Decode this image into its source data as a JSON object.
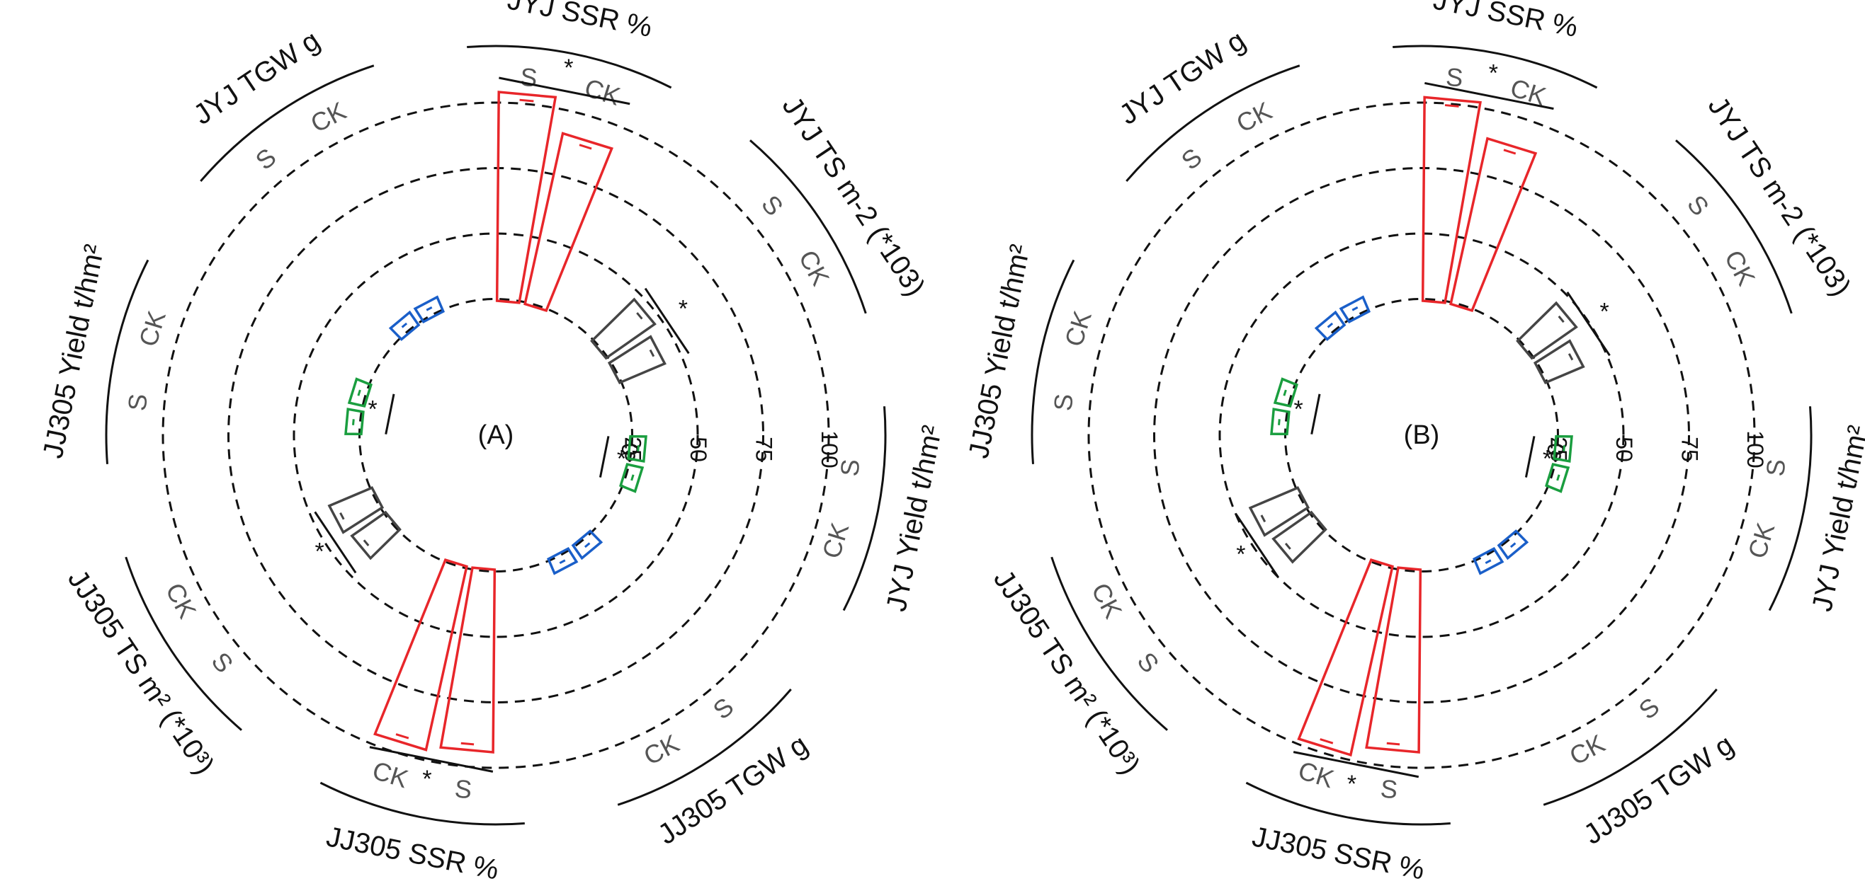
{
  "chart_data": [
    {
      "type": "radial-bar",
      "panel_label": "(A)",
      "radial_axis": {
        "range": [
          0,
          100
        ],
        "ticks": [
          "0",
          "25",
          "50",
          "75",
          "100"
        ]
      },
      "grid": "dashed circles at 25, 50, 75, 100",
      "groups": [
        {
          "label": "JYJ SSR %",
          "color": "#e8262a",
          "sig": "*",
          "bars": [
            {
              "label": "S",
              "value": 100
            },
            {
              "label": "CK",
              "value": 87
            }
          ]
        },
        {
          "label": "JYJ TS m<sup>-2</sup> (*10<sup>3</sup>)",
          "label_text": "JYJ TS m-2 (*103)",
          "color": "#454545",
          "sig": "*",
          "bars": [
            {
              "label": "S",
              "value": 47
            },
            {
              "label": "CK",
              "value": 43
            }
          ]
        },
        {
          "label": "JYJ Yield t/hm²",
          "color": "#1a9e3f",
          "sig": "*",
          "bars": [
            {
              "label": "S",
              "value": 10
            },
            {
              "label": "CK",
              "value": 7
            }
          ]
        },
        {
          "label": "JJ305 TGW g",
          "color": "#1a5fc9",
          "sig": "",
          "bars": [
            {
              "label": "S",
              "value": 25
            },
            {
              "label": "CK",
              "value": 24
            }
          ]
        },
        {
          "label": "JJ305 SSR %",
          "color": "#e8262a",
          "sig": "*",
          "bars": [
            {
              "label": "S",
              "value": 90
            },
            {
              "label": "CK",
              "value": 92
            }
          ]
        },
        {
          "label": "JJ305 TS m² (*10³)",
          "color": "#454545",
          "sig": "*",
          "bars": [
            {
              "label": "S",
              "value": 40
            },
            {
              "label": "CK",
              "value": 42
            }
          ]
        },
        {
          "label": "JJ305 Yield t/hm²",
          "color": "#1a9e3f",
          "sig": "*",
          "bars": [
            {
              "label": "S",
              "value": 8
            },
            {
              "label": "CK",
              "value": 9
            }
          ]
        },
        {
          "label": "JYJ TGW g",
          "color": "#1a5fc9",
          "sig": "",
          "bars": [
            {
              "label": "S",
              "value": 25
            },
            {
              "label": "CK",
              "value": 24
            }
          ]
        }
      ]
    },
    {
      "type": "radial-bar",
      "panel_label": "(B)",
      "radial_axis": {
        "range": [
          0,
          100
        ],
        "ticks": [
          "0",
          "25",
          "50",
          "75",
          "100"
        ]
      },
      "grid": "dashed circles at 25, 50, 75, 100",
      "groups": [
        {
          "label": "JYJ SSR %",
          "color": "#e8262a",
          "sig": "*",
          "bars": [
            {
              "label": "S",
              "value": 98
            },
            {
              "label": "CK",
              "value": 85
            }
          ]
        },
        {
          "label": "JYJ TS m-2 (*103)",
          "color": "#454545",
          "sig": "*",
          "bars": [
            {
              "label": "S",
              "value": 45
            },
            {
              "label": "CK",
              "value": 40
            }
          ]
        },
        {
          "label": "JYJ Yield t/hm²",
          "color": "#1a9e3f",
          "sig": "*",
          "bars": [
            {
              "label": "S",
              "value": 10
            },
            {
              "label": "CK",
              "value": 7
            }
          ]
        },
        {
          "label": "JJ305 TGW g",
          "color": "#1a5fc9",
          "sig": "",
          "bars": [
            {
              "label": "S",
              "value": 24
            },
            {
              "label": "CK",
              "value": 23
            }
          ]
        },
        {
          "label": "JJ305 SSR %",
          "color": "#e8262a",
          "sig": "*",
          "bars": [
            {
              "label": "S",
              "value": 90
            },
            {
              "label": "CK",
              "value": 94
            }
          ]
        },
        {
          "label": "JJ305 TS m² (*10³)",
          "color": "#454545",
          "sig": "*",
          "bars": [
            {
              "label": "S",
              "value": 42
            },
            {
              "label": "CK",
              "value": 44
            }
          ]
        },
        {
          "label": "JJ305 Yield t/hm²",
          "color": "#1a9e3f",
          "sig": "*",
          "bars": [
            {
              "label": "S",
              "value": 8
            },
            {
              "label": "CK",
              "value": 9
            }
          ]
        },
        {
          "label": "JYJ TGW g",
          "color": "#1a5fc9",
          "sig": "",
          "bars": [
            {
              "label": "S",
              "value": 25
            },
            {
              "label": "CK",
              "value": 23
            }
          ]
        }
      ]
    }
  ]
}
